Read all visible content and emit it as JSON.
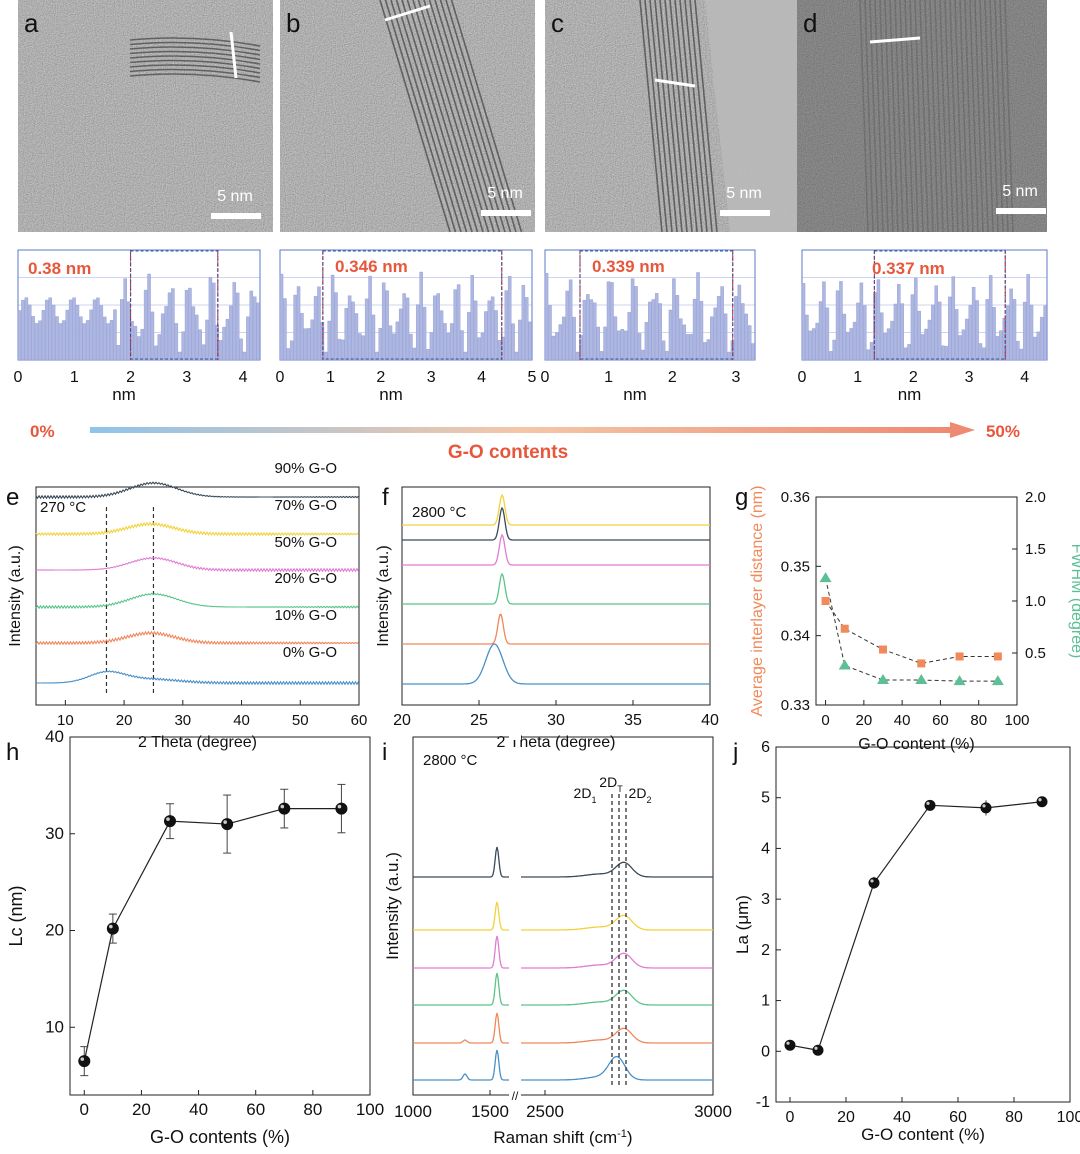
{
  "tem": {
    "panels": [
      {
        "letter": "a",
        "scalebar": "5 nm",
        "spacing": "0.38 nm"
      },
      {
        "letter": "b",
        "scalebar": "5 nm",
        "spacing": "0.346 nm"
      },
      {
        "letter": "c",
        "scalebar": "5 nm",
        "spacing": "0.339 nm"
      },
      {
        "letter": "d",
        "scalebar": "5 nm",
        "spacing": "0.337 nm"
      }
    ],
    "profile_xticks": [
      [
        "0",
        "1",
        "2",
        "3",
        "4"
      ],
      [
        "0",
        "1",
        "2",
        "3",
        "4",
        "5"
      ],
      [
        "0",
        "1",
        "2",
        "3"
      ],
      [
        "0",
        "1",
        "2",
        "3",
        "4"
      ]
    ],
    "profile_xlabel": "nm"
  },
  "gradient": {
    "start": "0%",
    "end": "50%",
    "label": "G-O contents"
  },
  "colors": {
    "accent_red": "#e8573c",
    "series": [
      "#4a90c8",
      "#f0865a",
      "#5cc48a",
      "#e27bd4",
      "#f2d23c",
      "#3a4a5a"
    ],
    "teal": "#5cbf96",
    "orange": "#f08a5a",
    "profile_fill": "#aeb7e0",
    "profile_border": "#5b78c8"
  },
  "chart_data": [
    {
      "panel": "e",
      "type": "line",
      "annotation": "270 °C",
      "xlabel": "2 Theta (degree)",
      "ylabel": "Intensity (a.u.)",
      "xlim": [
        5,
        60
      ],
      "xticks": [
        "10",
        "20",
        "30",
        "40",
        "50",
        "60"
      ],
      "dashed_x": [
        17,
        25
      ],
      "series": [
        {
          "name": "0% G-O",
          "peak": 17
        },
        {
          "name": "10% G-O",
          "peak": 24.5
        },
        {
          "name": "20% G-O",
          "peak": 25
        },
        {
          "name": "50% G-O",
          "peak": 25
        },
        {
          "name": "70% G-O",
          "peak": 24.5
        },
        {
          "name": "90% G-O",
          "peak": 25
        }
      ]
    },
    {
      "panel": "f",
      "type": "line",
      "annotation": "2800 °C",
      "xlabel": "2 Theta (degree)",
      "ylabel": "Intensity (a.u.)",
      "xlim": [
        20,
        40
      ],
      "xticks": [
        "20",
        "25",
        "30",
        "35",
        "40"
      ],
      "series_peaks": [
        26.0,
        26.4,
        26.5,
        26.5,
        26.5,
        26.5
      ]
    },
    {
      "panel": "g",
      "type": "scatter",
      "xlabel": "G-O content (%)",
      "ylabel_left": "Average interlayer distance (nm)",
      "ylabel_right": "FWHM (degree)",
      "xlim": [
        -5,
        100
      ],
      "ylim_left": [
        0.33,
        0.36
      ],
      "ylim_right": [
        0,
        2.0
      ],
      "xticks": [
        "0",
        "20",
        "40",
        "60",
        "80",
        "100"
      ],
      "yticks_left": [
        "0.33",
        "0.34",
        "0.35",
        "0.36"
      ],
      "yticks_right": [
        "0.5",
        "1.0",
        "1.5",
        "2.0"
      ],
      "x": [
        0,
        10,
        30,
        50,
        70,
        90
      ],
      "interlayer": [
        0.345,
        0.341,
        0.338,
        0.336,
        0.337,
        0.337
      ],
      "fwhm": [
        1.22,
        0.38,
        0.24,
        0.24,
        0.23,
        0.23
      ]
    },
    {
      "panel": "h",
      "type": "scatter",
      "xlabel": "G-O contents (%)",
      "ylabel": "Lc (nm)",
      "xlim": [
        -5,
        100
      ],
      "ylim": [
        3,
        40
      ],
      "xticks": [
        "0",
        "20",
        "40",
        "60",
        "80",
        "100"
      ],
      "yticks": [
        "10",
        "20",
        "30",
        "40"
      ],
      "x": [
        0,
        10,
        30,
        50,
        70,
        90
      ],
      "values": [
        6.5,
        20.2,
        31.3,
        31.0,
        32.6,
        32.6
      ],
      "errors": [
        1.5,
        1.5,
        1.8,
        3.0,
        2.0,
        2.5
      ]
    },
    {
      "panel": "i",
      "type": "line",
      "annotation": "2800 °C",
      "xlabel": "Raman shift (cm",
      "xlabel_sup": "-1",
      "xlabel_end": ")",
      "ylabel": "Intensity (a.u.)",
      "xticks": [
        "1000",
        "1500",
        "2500",
        "3000"
      ],
      "peak_labels": [
        "2D",
        "2D",
        "2D"
      ],
      "peak_subs": [
        "1",
        "T",
        "2"
      ]
    },
    {
      "panel": "j",
      "type": "scatter",
      "xlabel": "G-O content (%)",
      "ylabel": "La (μm)",
      "xlim": [
        -5,
        100
      ],
      "ylim": [
        -1,
        6
      ],
      "xticks": [
        "0",
        "20",
        "40",
        "60",
        "80",
        "100"
      ],
      "yticks": [
        "-1",
        "0",
        "1",
        "2",
        "3",
        "4",
        "5",
        "6"
      ],
      "x": [
        0,
        10,
        30,
        50,
        70,
        90
      ],
      "values": [
        0.12,
        0.02,
        3.32,
        4.85,
        4.8,
        4.92
      ],
      "errors": [
        0.05,
        0.05,
        0.12,
        0.08,
        0.15,
        0.08
      ]
    }
  ]
}
